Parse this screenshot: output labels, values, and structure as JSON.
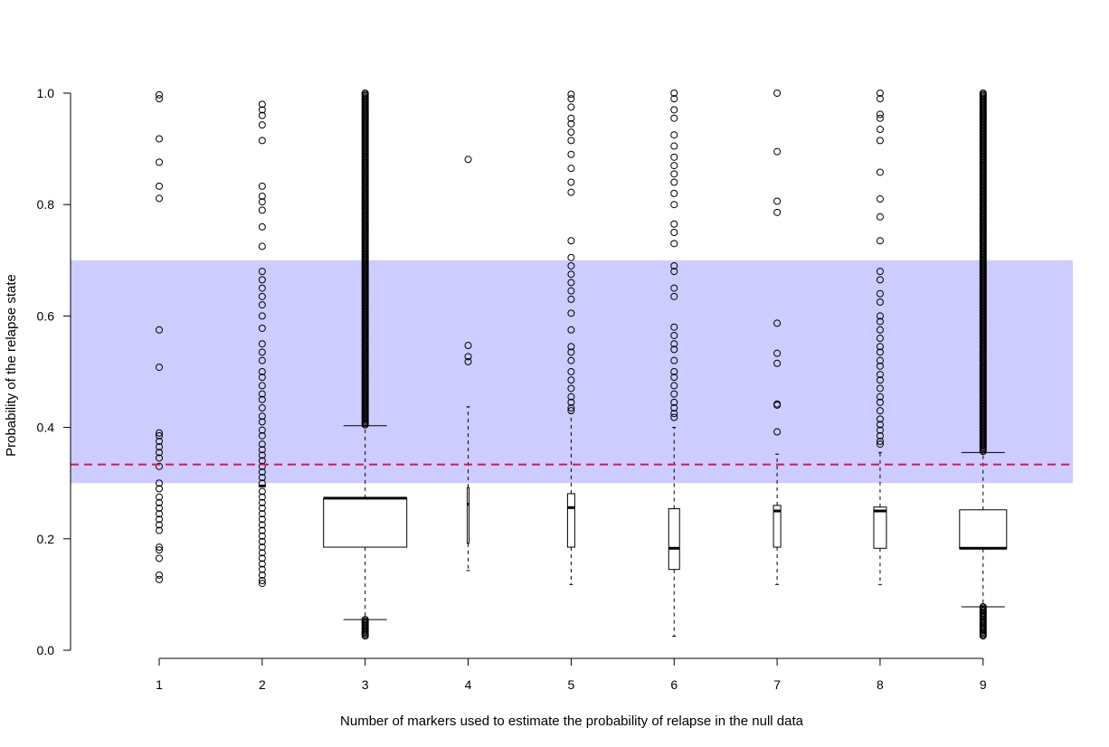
{
  "chart_data": {
    "type": "box",
    "title": "",
    "xlabel": "Number of markers used to estimate the probability of relapse in the null data",
    "ylabel": "Probability of the relapse state",
    "ylim": [
      0,
      1
    ],
    "yticks": [
      "0.0",
      "0.2",
      "0.4",
      "0.6",
      "0.8",
      "1.0"
    ],
    "categories": [
      "1",
      "2",
      "3",
      "4",
      "5",
      "6",
      "7",
      "8",
      "9"
    ],
    "reference_line": {
      "y": 0.3333,
      "style": "dashed",
      "color": "#d6184a"
    },
    "shaded_band": {
      "y_from": 0.3,
      "y_to": 0.7,
      "color": "#ccccff"
    },
    "grid": false,
    "boxes": [
      {
        "category": "1",
        "q1": null,
        "median": null,
        "q3": null,
        "whisker_low": null,
        "whisker_high": null,
        "outliers": [
          0.997,
          0.99,
          0.918,
          0.876,
          0.833,
          0.811,
          0.575,
          0.508,
          0.39,
          0.385,
          0.375,
          0.365,
          0.355,
          0.345,
          0.33,
          0.3,
          0.29,
          0.275,
          0.265,
          0.255,
          0.245,
          0.235,
          0.225,
          0.215,
          0.185,
          0.18,
          0.165,
          0.135,
          0.127
        ]
      },
      {
        "category": "2",
        "q1": 0.295,
        "median": 0.295,
        "q3": 0.295,
        "whisker_low": null,
        "whisker_high": null,
        "outliers": [
          0.98,
          0.97,
          0.96,
          0.943,
          0.915,
          0.833,
          0.815,
          0.805,
          0.79,
          0.76,
          0.725,
          0.68,
          0.665,
          0.65,
          0.635,
          0.62,
          0.6,
          0.578,
          0.55,
          0.535,
          0.52,
          0.5,
          0.49,
          0.475,
          0.46,
          0.45,
          0.435,
          0.42,
          0.41,
          0.395,
          0.385,
          0.37,
          0.36,
          0.35,
          0.34,
          0.33,
          0.32,
          0.31,
          0.3,
          0.285,
          0.275,
          0.265,
          0.255,
          0.245,
          0.235,
          0.225,
          0.215,
          0.205,
          0.195,
          0.185,
          0.175,
          0.165,
          0.155,
          0.145,
          0.135,
          0.125,
          0.12
        ]
      },
      {
        "category": "3",
        "q1": 0.185,
        "median": 0.273,
        "q3": 0.273,
        "whisker_low": 0.055,
        "whisker_high": 0.403,
        "outlier_range_high": [
          0.403,
          1.0
        ],
        "outlier_range_low": [
          0.025,
          0.055
        ]
      },
      {
        "category": "4",
        "q1": 0.192,
        "median": 0.262,
        "q3": 0.292,
        "whisker_low": 0.143,
        "whisker_high": 0.437,
        "outliers": [
          0.881,
          0.547,
          0.527,
          0.518
        ]
      },
      {
        "category": "5",
        "q1": 0.185,
        "median": 0.256,
        "q3": 0.281,
        "whisker_low": 0.118,
        "whisker_high": 0.425,
        "outliers": [
          0.998,
          0.99,
          0.975,
          0.955,
          0.945,
          0.93,
          0.915,
          0.89,
          0.865,
          0.84,
          0.822,
          0.735,
          0.705,
          0.69,
          0.675,
          0.66,
          0.645,
          0.63,
          0.605,
          0.575,
          0.545,
          0.535,
          0.52,
          0.5,
          0.485,
          0.47,
          0.455,
          0.445,
          0.435,
          0.43
        ]
      },
      {
        "category": "6",
        "q1": 0.145,
        "median": 0.183,
        "q3": 0.254,
        "whisker_low": 0.025,
        "whisker_high": 0.4,
        "outliers": [
          1.0,
          0.99,
          0.97,
          0.955,
          0.925,
          0.905,
          0.885,
          0.87,
          0.855,
          0.84,
          0.82,
          0.8,
          0.765,
          0.75,
          0.73,
          0.69,
          0.68,
          0.65,
          0.635,
          0.58,
          0.565,
          0.55,
          0.54,
          0.52,
          0.5,
          0.49,
          0.475,
          0.46,
          0.445,
          0.435,
          0.425,
          0.418
        ]
      },
      {
        "category": "7",
        "q1": 0.185,
        "median": 0.25,
        "q3": 0.26,
        "whisker_low": 0.118,
        "whisker_high": 0.352,
        "outliers": [
          1.0,
          0.895,
          0.806,
          0.786,
          0.587,
          0.533,
          0.515,
          0.442,
          0.44,
          0.392
        ]
      },
      {
        "category": "8",
        "q1": 0.183,
        "median": 0.25,
        "q3": 0.257,
        "whisker_low": 0.118,
        "whisker_high": 0.355,
        "outliers": [
          1.0,
          0.99,
          0.962,
          0.955,
          0.935,
          0.915,
          0.858,
          0.81,
          0.778,
          0.735,
          0.68,
          0.665,
          0.64,
          0.625,
          0.6,
          0.59,
          0.575,
          0.56,
          0.545,
          0.535,
          0.52,
          0.51,
          0.495,
          0.485,
          0.47,
          0.455,
          0.445,
          0.43,
          0.415,
          0.405,
          0.395,
          0.385,
          0.375,
          0.37
        ]
      },
      {
        "category": "9",
        "q1": 0.182,
        "median": 0.183,
        "q3": 0.252,
        "whisker_low": 0.078,
        "whisker_high": 0.355,
        "outlier_range_high": [
          0.355,
          1.0
        ],
        "outlier_range_low": [
          0.025,
          0.078
        ]
      }
    ]
  }
}
